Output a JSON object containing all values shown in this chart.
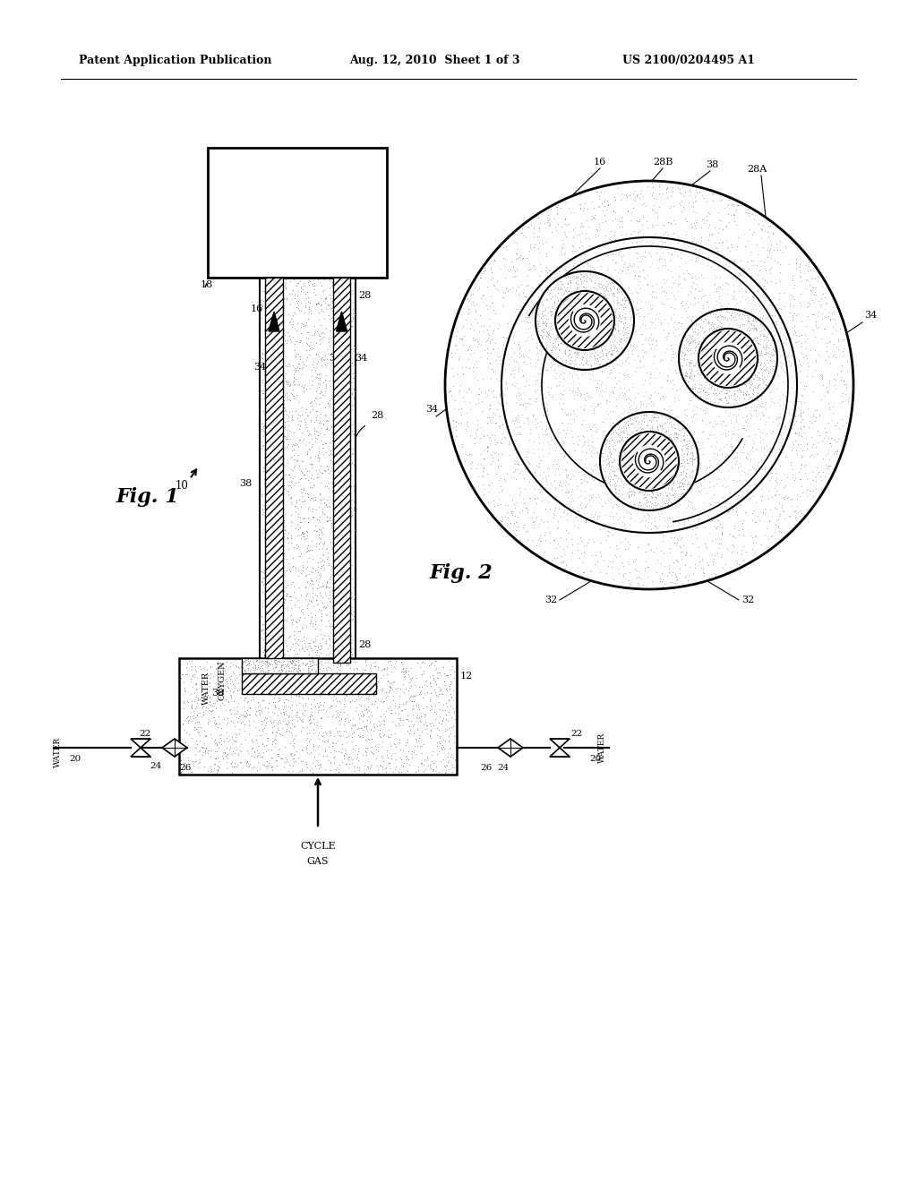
{
  "title_left": "Patent Application Publication",
  "title_mid": "Aug. 12, 2010  Sheet 1 of 3",
  "title_right": "US 2100/0204495 A1",
  "fig1_label": "Fig. 1",
  "fig2_label": "Fig. 2",
  "background": "#ffffff"
}
